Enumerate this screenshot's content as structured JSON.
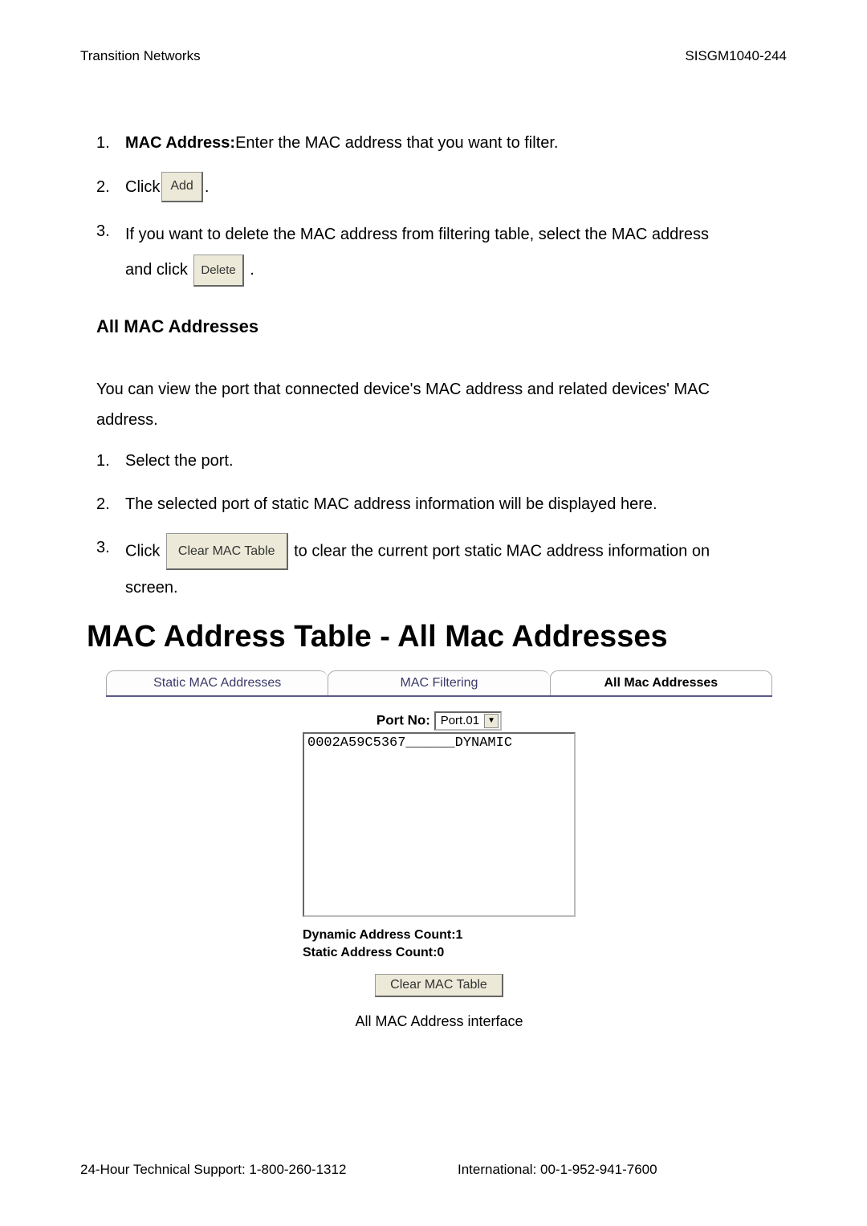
{
  "header": {
    "left": "Transition Networks",
    "right": "SISGM1040-244"
  },
  "steps_a": {
    "n1": "1.",
    "b1_bold": "MAC Address:",
    "b1_rest": " Enter the MAC address that you want to filter.",
    "n2": "2.",
    "b2_pre": "Click ",
    "b2_btn": "Add",
    "b2_post": ".",
    "n3": "3.",
    "b3_line1": "If you want to delete the MAC address from filtering table, select the MAC address",
    "b3_pre": "and click ",
    "b3_btn": "Delete",
    "b3_post": "."
  },
  "section_heading": "All MAC Addresses",
  "intro": "You can view the port that connected device's MAC address and related devices' MAC address.",
  "steps_b": {
    "n1": "1.",
    "b1": "Select the port.",
    "n2": "2.",
    "b2": "The selected port of static MAC address information will be displayed here.",
    "n3": "3.",
    "b3_pre": "Click ",
    "b3_btn": "Clear MAC Table",
    "b3_mid": " to clear the current port static MAC address information on",
    "b3_line2": "screen."
  },
  "big_title": "MAC Address Table - All Mac Addresses",
  "tabs": {
    "t1": "Static MAC Addresses",
    "t2": "MAC Filtering",
    "t3": "All Mac Addresses"
  },
  "panel": {
    "port_label": "Port No:",
    "port_value": "Port.01",
    "list_entry": "0002A59C5367______DYNAMIC",
    "dyn_count": "Dynamic Address Count:1",
    "stat_count": "Static Address Count:0",
    "clear_btn": "Clear MAC Table"
  },
  "caption": "All MAC Address interface",
  "footer": {
    "left": "24-Hour Technical Support: 1-800-260-1312",
    "right": "International: 00-1-952-941-7600"
  },
  "colors": {
    "btn_bg": "#ece9d8",
    "tab_border": "#5a5a8a"
  }
}
